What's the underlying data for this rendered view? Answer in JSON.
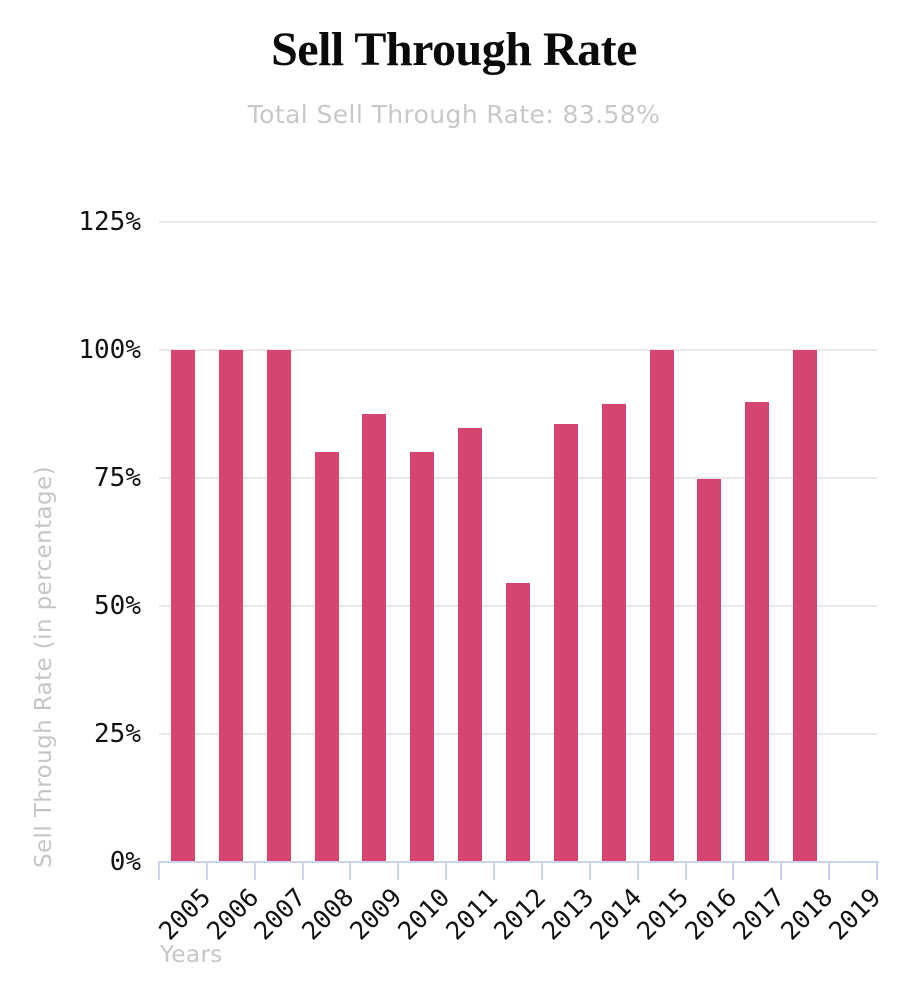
{
  "header": {
    "title": "Sell Through Rate",
    "subtitle": "Total Sell Through Rate: 83.58%"
  },
  "chart_data": {
    "type": "bar",
    "title": "Sell Through Rate",
    "subtitle": "Total Sell Through Rate: 83.58%",
    "xlabel": "Years",
    "ylabel": "Sell Through Rate (in percentage)",
    "categories": [
      "2005",
      "2006",
      "2007",
      "2008",
      "2009",
      "2010",
      "2011",
      "2012",
      "2013",
      "2014",
      "2015",
      "2016",
      "2017",
      "2018",
      "2019"
    ],
    "values": [
      100,
      100,
      100,
      80,
      87.5,
      80,
      84.7,
      54.5,
      85.5,
      89.4,
      100,
      74.8,
      89.9,
      100,
      0
    ],
    "unit": "%",
    "y_tick_labels": [
      "0%",
      "25%",
      "50%",
      "75%",
      "100%",
      "125%"
    ],
    "y_tick_values": [
      0,
      25,
      50,
      75,
      100,
      125
    ],
    "ylim": [
      0,
      125
    ],
    "grid": true,
    "legend": "none",
    "colors": {
      "bar": "#d5456f",
      "axis": "#ccd3ec",
      "grid": "#e9e9e9",
      "tick_label": "#111111",
      "muted_label": "#c6c6c6",
      "subtitle": "#c8c8c8",
      "title": "#0a0a0a"
    }
  }
}
